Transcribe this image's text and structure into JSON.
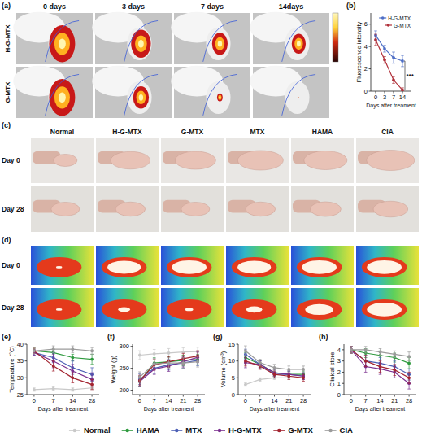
{
  "image_panels": {
    "a": {
      "label": "(a)",
      "columns": [
        "0 days",
        "3 days",
        "7 days",
        "14days"
      ],
      "rows": [
        "H-G-MTX",
        "G-MTX"
      ]
    },
    "c": {
      "label": "(c)",
      "columns": [
        "Normal",
        "H-G-MTX",
        "G-MTX",
        "MTX",
        "HAMA",
        "CIA"
      ],
      "rows": [
        "Day 0",
        "Day 28"
      ]
    },
    "d": {
      "label": "(d)",
      "rows": [
        "Day 0",
        "Day 28"
      ]
    }
  },
  "panel_labels": [
    "(b)",
    "(e)",
    "(f)",
    "(g)",
    "(h)"
  ],
  "chart_data": [
    {
      "type": "line",
      "categories": [
        "0",
        "3",
        "7",
        "14"
      ],
      "x_label": "Days after treament",
      "y_label": "Fluorescence intensity",
      "ylim": [
        0,
        7
      ],
      "yticks": [
        0,
        2,
        4,
        6
      ],
      "legend": "upper right",
      "marker": "circle",
      "annotation": "***",
      "series": [
        {
          "name": "H-G-MTX",
          "color": "#4f6fc6",
          "values": [
            5.0,
            3.8,
            3.0,
            2.7
          ],
          "errors": [
            0.4,
            0.3,
            0.5,
            0.5
          ]
        },
        {
          "name": "G-MTX",
          "color": "#b0303a",
          "values": [
            4.6,
            2.8,
            1.0,
            0.1
          ],
          "errors": [
            0.5,
            0.3,
            0.3,
            0.2
          ]
        }
      ]
    },
    {
      "type": "line",
      "categories": [
        "0",
        "7",
        "14",
        "28"
      ],
      "x_label": "Days after treament",
      "y_label": "Temperature (°C)",
      "ylim": [
        25,
        40
      ],
      "yticks": [
        25,
        30,
        35,
        40
      ],
      "legend": "bottom",
      "marker": "circle",
      "series": [
        {
          "name": "Normal",
          "color": "#c9c9c9",
          "values": [
            26.5,
            26.8,
            26.5,
            27.0
          ],
          "errors": [
            0.5,
            0.5,
            0.5,
            0.5
          ]
        },
        {
          "name": "HAMA",
          "color": "#2e9a3e",
          "values": [
            38.0,
            37.5,
            36.0,
            35.5
          ],
          "errors": [
            0.8,
            1.0,
            1.0,
            1.5
          ]
        },
        {
          "name": "MTX",
          "color": "#4c5fb5",
          "values": [
            37.5,
            36.0,
            33.0,
            31.0
          ],
          "errors": [
            0.8,
            1.5,
            2.0,
            2.0
          ]
        },
        {
          "name": "H-G-MTX",
          "color": "#7a2f8f",
          "values": [
            37.5,
            35.0,
            32.0,
            29.5
          ],
          "errors": [
            0.8,
            2.0,
            2.0,
            2.0
          ]
        },
        {
          "name": "G-MTX",
          "color": "#a32430",
          "values": [
            38.0,
            33.5,
            30.0,
            28.0
          ],
          "errors": [
            0.8,
            1.5,
            1.5,
            1.5
          ]
        },
        {
          "name": "CIA",
          "color": "#9b9b9b",
          "values": [
            38.0,
            38.5,
            38.5,
            38.0
          ],
          "errors": [
            0.8,
            1.0,
            1.0,
            1.0
          ]
        }
      ]
    },
    {
      "type": "line",
      "categories": [
        "0",
        "7",
        "14",
        "21",
        "28"
      ],
      "x_label": "Days after treament",
      "y_label": "Weight (g)",
      "ylim": [
        190,
        305
      ],
      "yticks": [
        200,
        250,
        300
      ],
      "marker": "circle",
      "series": [
        {
          "name": "Normal",
          "color": "#c9c9c9",
          "values": [
            280,
            283,
            285,
            287,
            288
          ],
          "errors": [
            10,
            10,
            10,
            10,
            10
          ]
        },
        {
          "name": "HAMA",
          "color": "#2e9a3e",
          "values": [
            220,
            262,
            265,
            268,
            270
          ],
          "errors": [
            12,
            12,
            12,
            12,
            12
          ]
        },
        {
          "name": "MTX",
          "color": "#4c5fb5",
          "values": [
            225,
            250,
            258,
            262,
            268
          ],
          "errors": [
            12,
            12,
            12,
            12,
            12
          ]
        },
        {
          "name": "H-G-MTX",
          "color": "#7a2f8f",
          "values": [
            220,
            248,
            255,
            265,
            275
          ],
          "errors": [
            12,
            12,
            12,
            12,
            12
          ]
        },
        {
          "name": "G-MTX",
          "color": "#a32430",
          "values": [
            222,
            258,
            265,
            272,
            278
          ],
          "errors": [
            12,
            12,
            12,
            12,
            12
          ]
        },
        {
          "name": "CIA",
          "color": "#9b9b9b",
          "values": [
            230,
            260,
            262,
            262,
            265
          ],
          "errors": [
            12,
            12,
            12,
            12,
            12
          ]
        }
      ]
    },
    {
      "type": "line",
      "categories": [
        "0",
        "7",
        "14",
        "21",
        "28"
      ],
      "x_label": "Days after treament",
      "y_label": "Volume (cm³)",
      "ylim": [
        0,
        15
      ],
      "yticks": [
        0,
        5,
        10,
        15
      ],
      "marker": "circle",
      "series": [
        {
          "name": "Normal",
          "color": "#c9c9c9",
          "values": [
            3.0,
            4.5,
            5.0,
            5.0,
            5.0
          ],
          "errors": [
            0.5,
            0.5,
            0.5,
            0.5,
            0.5
          ]
        },
        {
          "name": "HAMA",
          "color": "#2e9a3e",
          "values": [
            11.0,
            9.0,
            6.5,
            6.0,
            6.0
          ],
          "errors": [
            1.5,
            1.0,
            1.0,
            1.0,
            1.0
          ]
        },
        {
          "name": "MTX",
          "color": "#4c5fb5",
          "values": [
            12.0,
            9.0,
            6.0,
            6.0,
            5.5
          ],
          "errors": [
            1.5,
            1.0,
            1.0,
            1.0,
            1.0
          ]
        },
        {
          "name": "H-G-MTX",
          "color": "#7a2f8f",
          "values": [
            9.5,
            9.0,
            6.5,
            6.0,
            5.5
          ],
          "errors": [
            1.5,
            1.0,
            1.0,
            1.0,
            1.0
          ]
        },
        {
          "name": "G-MTX",
          "color": "#a32430",
          "values": [
            10.0,
            8.5,
            6.0,
            5.5,
            5.0
          ],
          "errors": [
            1.5,
            1.0,
            1.0,
            1.0,
            1.0
          ]
        },
        {
          "name": "CIA",
          "color": "#9b9b9b",
          "values": [
            13.0,
            9.5,
            8.0,
            7.5,
            7.5
          ],
          "errors": [
            1.5,
            1.0,
            1.0,
            1.0,
            1.0
          ]
        }
      ]
    },
    {
      "type": "line",
      "categories": [
        "0",
        "7",
        "14",
        "21",
        "28"
      ],
      "x_label": "Days after treament",
      "y_label": "Clinical store",
      "ylim": [
        0,
        4.5
      ],
      "yticks": [
        0,
        1,
        2,
        3,
        4
      ],
      "marker": "circle",
      "series": [
        {
          "name": "HAMA",
          "color": "#2e9a3e",
          "values": [
            4.0,
            3.7,
            3.5,
            3.3,
            2.8
          ],
          "errors": [
            0.3,
            0.4,
            0.4,
            0.4,
            0.5
          ]
        },
        {
          "name": "MTX",
          "color": "#4c5fb5",
          "values": [
            4.0,
            3.0,
            2.8,
            2.5,
            1.8
          ],
          "errors": [
            0.3,
            0.5,
            0.5,
            0.5,
            0.5
          ]
        },
        {
          "name": "H-G-MTX",
          "color": "#7a2f8f",
          "values": [
            4.0,
            2.5,
            2.3,
            2.0,
            1.0
          ],
          "errors": [
            0.3,
            0.5,
            0.5,
            0.5,
            0.5
          ]
        },
        {
          "name": "G-MTX",
          "color": "#a32430",
          "values": [
            4.0,
            3.0,
            2.5,
            2.2,
            1.5
          ],
          "errors": [
            0.3,
            0.5,
            0.5,
            0.5,
            0.5
          ]
        },
        {
          "name": "CIA",
          "color": "#9b9b9b",
          "values": [
            4.0,
            4.0,
            3.8,
            3.6,
            3.4
          ],
          "errors": [
            0.3,
            0.3,
            0.3,
            0.3,
            0.4
          ]
        }
      ]
    }
  ]
}
